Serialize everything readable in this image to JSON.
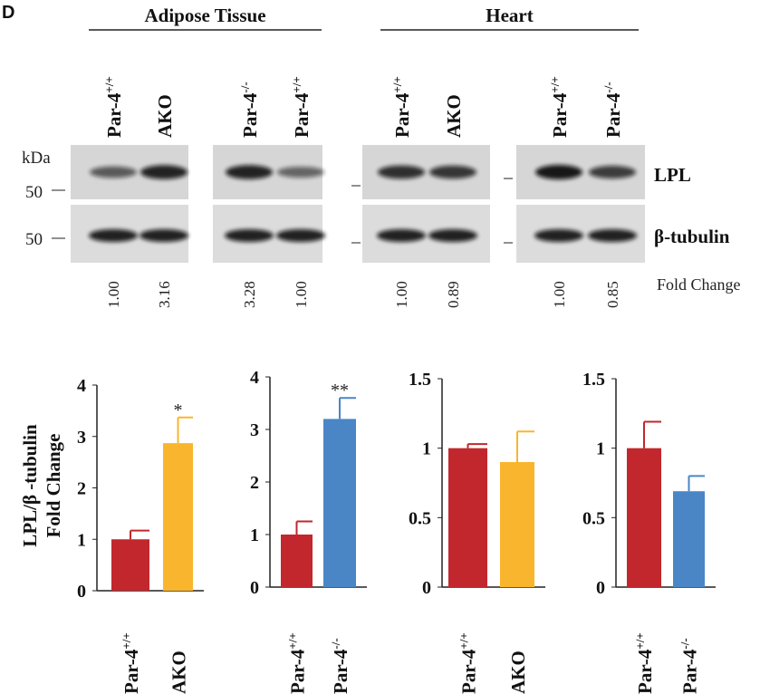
{
  "panel_letter": "D",
  "blot": {
    "kda_label": "kDa",
    "marker_lpl": "50",
    "marker_tubulin": "50",
    "row_labels": [
      "LPL",
      "β-tubulin"
    ],
    "fold_change_label": "Fold Change",
    "groups": [
      {
        "tissue": "Adipose Tissue",
        "panels": [
          {
            "lanes": [
              {
                "base": "Par-4",
                "sup": "+/+"
              },
              {
                "base": "AKO",
                "sup": ""
              }
            ],
            "fold": [
              "1.00",
              "3.16"
            ]
          },
          {
            "lanes": [
              {
                "base": "Par-4",
                "sup": "-/-"
              },
              {
                "base": "Par-4",
                "sup": "+/+"
              }
            ],
            "fold": [
              "3.28",
              "1.00"
            ]
          }
        ]
      },
      {
        "tissue": "Heart",
        "panels": [
          {
            "lanes": [
              {
                "base": "Par-4",
                "sup": "+/+"
              },
              {
                "base": "AKO",
                "sup": ""
              }
            ],
            "fold": [
              "1.00",
              "0.89"
            ]
          },
          {
            "lanes": [
              {
                "base": "Par-4",
                "sup": "+/+"
              },
              {
                "base": "Par-4",
                "sup": "-/-"
              }
            ],
            "fold": [
              "1.00",
              "0.85"
            ]
          }
        ]
      }
    ]
  },
  "chart_data": [
    {
      "type": "bar",
      "ylabel": "LPL/β -tubulin Fold Change",
      "ylim": [
        0,
        4
      ],
      "yticks": [
        "0",
        "1",
        "2",
        "3",
        "4"
      ],
      "categories": [
        {
          "base": "Par-4",
          "sup": "+/+"
        },
        {
          "base": "AKO",
          "sup": ""
        }
      ],
      "values": [
        1.0,
        2.87
      ],
      "errors": [
        0.17,
        0.5
      ],
      "colors": [
        "#c1272d",
        "#f9b52d"
      ],
      "annotations": [
        "",
        "*"
      ]
    },
    {
      "type": "bar",
      "ylim": [
        0,
        4
      ],
      "yticks": [
        "0",
        "1",
        "2",
        "3",
        "4"
      ],
      "categories": [
        {
          "base": "Par-4",
          "sup": "+/+"
        },
        {
          "base": "Par-4",
          "sup": "-/-"
        }
      ],
      "values": [
        1.0,
        3.2
      ],
      "errors": [
        0.25,
        0.4
      ],
      "colors": [
        "#c1272d",
        "#4a86c6"
      ],
      "annotations": [
        "",
        "**"
      ]
    },
    {
      "type": "bar",
      "ylim": [
        0,
        1.5
      ],
      "yticks": [
        "0",
        "0.5",
        "1",
        "1.5"
      ],
      "categories": [
        {
          "base": "Par-4",
          "sup": "+/+"
        },
        {
          "base": "AKO",
          "sup": ""
        }
      ],
      "values": [
        1.0,
        0.9
      ],
      "errors": [
        0.03,
        0.22
      ],
      "colors": [
        "#c1272d",
        "#f9b52d"
      ],
      "annotations": [
        "",
        ""
      ]
    },
    {
      "type": "bar",
      "ylim": [
        0,
        1.5
      ],
      "yticks": [
        "0",
        "0.5",
        "1",
        "1.5"
      ],
      "categories": [
        {
          "base": "Par-4",
          "sup": "+/+"
        },
        {
          "base": "Par-4",
          "sup": "-/-"
        }
      ],
      "values": [
        1.0,
        0.69
      ],
      "errors": [
        0.19,
        0.11
      ],
      "colors": [
        "#c1272d",
        "#4a86c6"
      ],
      "annotations": [
        "",
        ""
      ]
    }
  ]
}
